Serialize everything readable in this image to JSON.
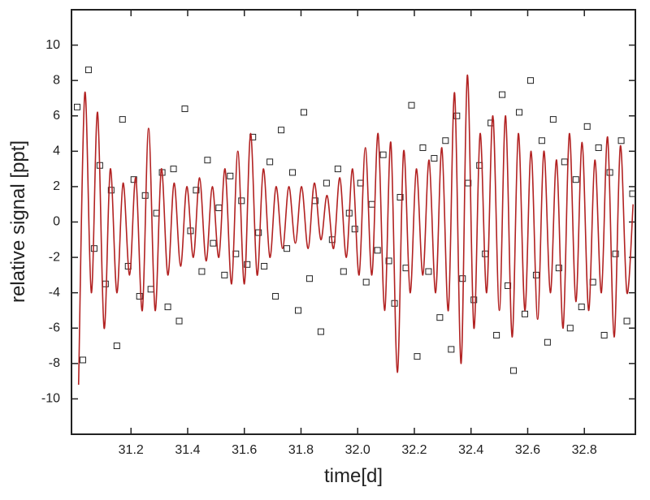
{
  "chart_data": {
    "type": "scatter-fit",
    "xlabel": "time[d]",
    "ylabel": "relative signal [ppt]",
    "xlim": [
      30.99,
      32.98
    ],
    "ylim": [
      -12,
      12
    ],
    "xticks": [
      31.2,
      31.4,
      31.6,
      31.8,
      {
        "value": 32,
        "label": "32.0"
      },
      32.2,
      32.4,
      32.6,
      32.8
    ],
    "yticks": [
      -10,
      -8,
      -6,
      -4,
      -2,
      0,
      2,
      4,
      6,
      8,
      10
    ],
    "series": [
      {
        "kind": "points",
        "color": "#222222",
        "x": [
          31.01,
          31.03,
          31.05,
          31.07,
          31.09,
          31.11,
          31.13,
          31.15,
          31.17,
          31.19,
          31.21,
          31.23,
          31.25,
          31.27,
          31.29,
          31.31,
          31.33,
          31.35,
          31.37,
          31.39,
          31.41,
          31.43,
          31.45,
          31.47,
          31.49,
          31.51,
          31.53,
          31.55,
          31.57,
          31.59,
          31.61,
          31.63,
          31.65,
          31.67,
          31.69,
          31.71,
          31.73,
          31.75,
          31.77,
          31.79,
          31.81,
          31.83,
          31.85,
          31.87,
          31.89,
          31.91,
          31.93,
          31.95,
          31.97,
          31.99,
          32.01,
          32.03,
          32.05,
          32.07,
          32.09,
          32.11,
          32.13,
          32.15,
          32.17,
          32.19,
          32.21,
          32.23,
          32.25,
          32.27,
          32.29,
          32.31,
          32.33,
          32.35,
          32.37,
          32.39,
          32.41,
          32.43,
          32.45,
          32.47,
          32.49,
          32.51,
          32.53,
          32.55,
          32.57,
          32.59,
          32.61,
          32.63,
          32.65,
          32.67,
          32.69,
          32.71,
          32.73,
          32.75,
          32.77,
          32.79,
          32.81,
          32.83,
          32.85,
          32.87,
          32.89,
          32.91,
          32.93,
          32.95,
          32.97
        ],
        "values": [
          6.5,
          -7.8,
          8.6,
          -1.5,
          3.2,
          -3.5,
          1.8,
          -7,
          5.8,
          -2.5,
          2.4,
          -4.2,
          1.5,
          -3.8,
          0.5,
          2.8,
          -4.8,
          3,
          -5.6,
          6.4,
          -0.5,
          1.8,
          -2.8,
          3.5,
          -1.2,
          0.8,
          -3,
          2.6,
          -1.8,
          1.2,
          -2.4,
          4.8,
          -0.6,
          -2.5,
          3.4,
          -4.2,
          5.2,
          -1.5,
          2.8,
          -5,
          6.2,
          -3.2,
          1.2,
          -6.2,
          2.2,
          -1,
          3,
          -2.8,
          0.5,
          -0.4,
          2.2,
          -3.4,
          1,
          -1.6,
          3.8,
          -2.2,
          -4.6,
          1.4,
          -2.6,
          6.6,
          -7.6,
          4.2,
          -2.8,
          3.6,
          -5.4,
          4.6,
          -7.2,
          6,
          -3.2,
          2.2,
          -4.4,
          3.2,
          -1.8,
          5.6,
          -6.4,
          7.2,
          -3.6,
          -8.4,
          6.2,
          -5.2,
          8,
          -3,
          4.6,
          -6.8,
          5.8,
          -2.6,
          3.4,
          -6,
          2.4,
          -4.8,
          5.4,
          -3.4,
          4.2,
          -6.4,
          2.8,
          -1.8,
          4.6,
          -5.6,
          1.6
        ]
      },
      {
        "kind": "fit",
        "color": "#b22222",
        "x": [
          31.015,
          31.037,
          31.06,
          31.082,
          31.105,
          31.127,
          31.15,
          31.172,
          31.195,
          31.217,
          31.24,
          31.262,
          31.285,
          31.307,
          31.33,
          31.352,
          31.375,
          31.397,
          31.42,
          31.442,
          31.465,
          31.487,
          31.51,
          31.532,
          31.555,
          31.577,
          31.6,
          31.622,
          31.645,
          31.667,
          31.69,
          31.712,
          31.735,
          31.757,
          31.78,
          31.802,
          31.825,
          31.847,
          31.87,
          31.892,
          31.915,
          31.937,
          31.96,
          31.982,
          32.005,
          32.027,
          32.05,
          32.072,
          32.095,
          32.117,
          32.14,
          32.162,
          32.185,
          32.207,
          32.23,
          32.252,
          32.275,
          32.297,
          32.32,
          32.342,
          32.365,
          32.387,
          32.41,
          32.432,
          32.455,
          32.477,
          32.5,
          32.522,
          32.545,
          32.567,
          32.59,
          32.612,
          32.635,
          32.657,
          32.68,
          32.702,
          32.725,
          32.747,
          32.77,
          32.792,
          32.815,
          32.837,
          32.86,
          32.882,
          32.905,
          32.927,
          32.95,
          32.972
        ],
        "values": [
          -9.2,
          7.3,
          -4,
          6.2,
          -6,
          3,
          -4,
          2.2,
          -3,
          2.5,
          -5,
          5.3,
          -5,
          3,
          -3,
          2.2,
          -2.5,
          2,
          -2,
          2.5,
          -2.2,
          2,
          -2,
          3,
          -3.5,
          4,
          -3.5,
          5,
          -3,
          3,
          -2,
          2,
          -1.5,
          2,
          -1.2,
          2,
          -1.5,
          2.2,
          -1,
          1.5,
          -1.5,
          2.5,
          -2,
          3,
          -3,
          4.2,
          -3,
          5,
          -5,
          4.5,
          -8.5,
          4,
          -4,
          3,
          -3,
          3.5,
          -4,
          4.2,
          -5,
          7.3,
          -8,
          8.3,
          -6,
          5,
          -4,
          6,
          -5,
          6,
          -6.5,
          5,
          -5,
          4,
          -5.5,
          4,
          -4,
          3.5,
          -6,
          5,
          -4.5,
          4.5,
          -5,
          3.5,
          -4,
          4.8,
          -6.5,
          4.3,
          -4,
          1
        ]
      }
    ]
  }
}
